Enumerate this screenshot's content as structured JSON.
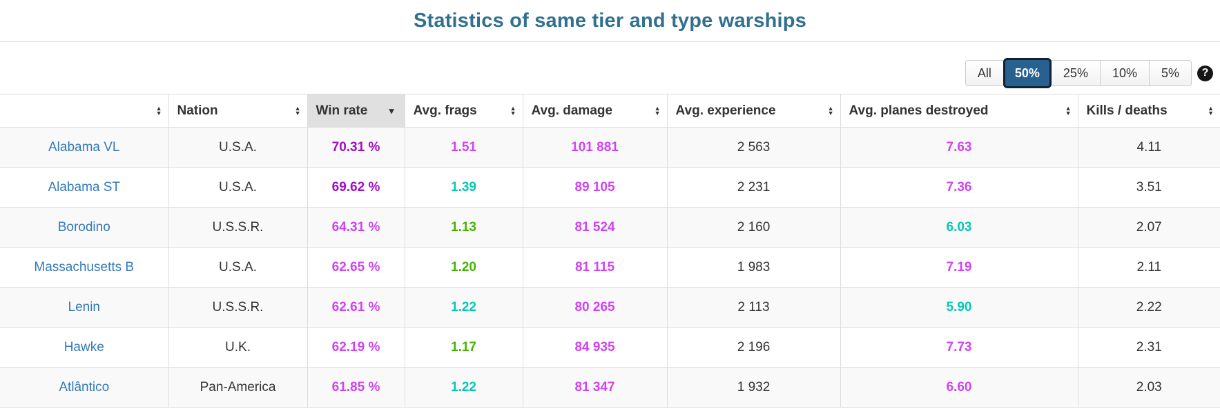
{
  "page": {
    "title": "Statistics of same tier and type warships"
  },
  "toolbar": {
    "filter_buttons": [
      {
        "label": "All",
        "active": false
      },
      {
        "label": "50%",
        "active": true
      },
      {
        "label": "25%",
        "active": false
      },
      {
        "label": "10%",
        "active": false
      },
      {
        "label": "5%",
        "active": false
      }
    ],
    "help_glyph": "?"
  },
  "palette": {
    "title": "#31708f",
    "link": "#337ab7",
    "superunicum": "#a00dc5",
    "unicum": "#d042f3",
    "great": "#02c9b3",
    "good": "#44b300",
    "plain_text": "#333333",
    "active_button_bg": "#286090",
    "sorted_header_bg": "#e0e0e0"
  },
  "icons": {
    "sort_up": "▲",
    "sort_down": "▼",
    "sort_descending": "▼"
  },
  "table": {
    "columns": [
      {
        "key": "ship",
        "label": "",
        "sorted": false
      },
      {
        "key": "nation",
        "label": "Nation",
        "sorted": false
      },
      {
        "key": "win_rate",
        "label": "Win rate",
        "sorted": true,
        "direction": "desc"
      },
      {
        "key": "avg_frags",
        "label": "Avg. frags",
        "sorted": false
      },
      {
        "key": "avg_damage",
        "label": "Avg. damage",
        "sorted": false
      },
      {
        "key": "avg_experience",
        "label": "Avg. experience",
        "sorted": false
      },
      {
        "key": "avg_planes",
        "label": "Avg. planes destroyed",
        "sorted": false
      },
      {
        "key": "kills_deaths",
        "label": "Kills / deaths",
        "sorted": false
      }
    ],
    "rows": [
      {
        "ship": "Alabama VL",
        "nation": "U.S.A.",
        "win_rate": {
          "text": "70.31 %",
          "tier": "superunicum"
        },
        "avg_frags": {
          "text": "1.51",
          "tier": "unicum"
        },
        "avg_damage": {
          "text": "101 881",
          "tier": "unicum"
        },
        "avg_experience": "2 563",
        "avg_planes": {
          "text": "7.63",
          "tier": "unicum"
        },
        "kills_deaths": "4.11"
      },
      {
        "ship": "Alabama ST",
        "nation": "U.S.A.",
        "win_rate": {
          "text": "69.62 %",
          "tier": "superunicum"
        },
        "avg_frags": {
          "text": "1.39",
          "tier": "great"
        },
        "avg_damage": {
          "text": "89 105",
          "tier": "unicum"
        },
        "avg_experience": "2 231",
        "avg_planes": {
          "text": "7.36",
          "tier": "unicum"
        },
        "kills_deaths": "3.51"
      },
      {
        "ship": "Borodino",
        "nation": "U.S.S.R.",
        "win_rate": {
          "text": "64.31 %",
          "tier": "unicum"
        },
        "avg_frags": {
          "text": "1.13",
          "tier": "good"
        },
        "avg_damage": {
          "text": "81 524",
          "tier": "unicum"
        },
        "avg_experience": "2 160",
        "avg_planes": {
          "text": "6.03",
          "tier": "great"
        },
        "kills_deaths": "2.07"
      },
      {
        "ship": "Massachusetts B",
        "nation": "U.S.A.",
        "win_rate": {
          "text": "62.65 %",
          "tier": "unicum"
        },
        "avg_frags": {
          "text": "1.20",
          "tier": "good"
        },
        "avg_damage": {
          "text": "81 115",
          "tier": "unicum"
        },
        "avg_experience": "1 983",
        "avg_planes": {
          "text": "7.19",
          "tier": "unicum"
        },
        "kills_deaths": "2.11"
      },
      {
        "ship": "Lenin",
        "nation": "U.S.S.R.",
        "win_rate": {
          "text": "62.61 %",
          "tier": "unicum"
        },
        "avg_frags": {
          "text": "1.22",
          "tier": "great"
        },
        "avg_damage": {
          "text": "80 265",
          "tier": "unicum"
        },
        "avg_experience": "2 113",
        "avg_planes": {
          "text": "5.90",
          "tier": "great"
        },
        "kills_deaths": "2.22"
      },
      {
        "ship": "Hawke",
        "nation": "U.K.",
        "win_rate": {
          "text": "62.19 %",
          "tier": "unicum"
        },
        "avg_frags": {
          "text": "1.17",
          "tier": "good"
        },
        "avg_damage": {
          "text": "84 935",
          "tier": "unicum"
        },
        "avg_experience": "2 196",
        "avg_planes": {
          "text": "7.73",
          "tier": "unicum"
        },
        "kills_deaths": "2.31"
      },
      {
        "ship": "Atlântico",
        "nation": "Pan-America",
        "win_rate": {
          "text": "61.85 %",
          "tier": "unicum"
        },
        "avg_frags": {
          "text": "1.22",
          "tier": "great"
        },
        "avg_damage": {
          "text": "81 347",
          "tier": "unicum"
        },
        "avg_experience": "1 932",
        "avg_planes": {
          "text": "6.60",
          "tier": "unicum"
        },
        "kills_deaths": "2.03"
      }
    ]
  }
}
